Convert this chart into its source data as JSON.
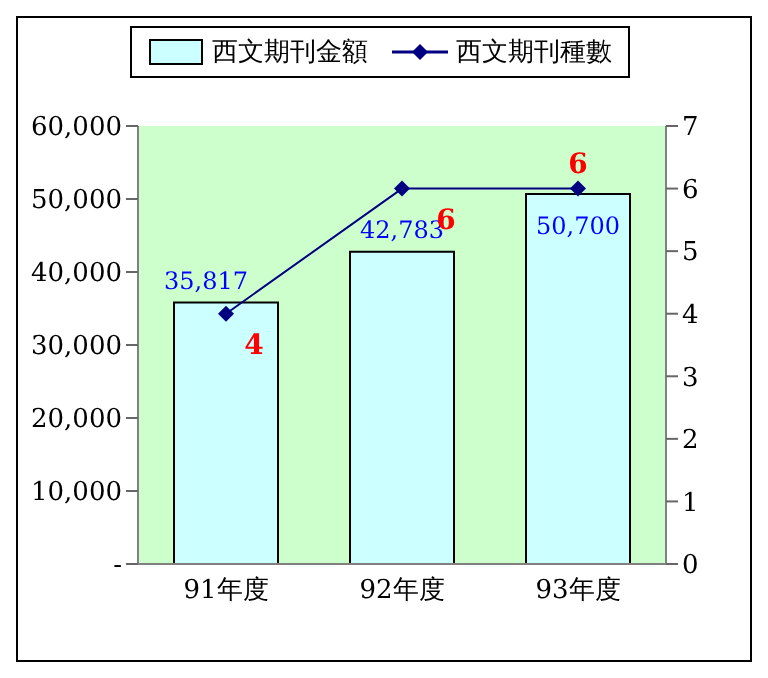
{
  "chart_data": {
    "type": "bar",
    "categories": [
      "91年度",
      "92年度",
      "93年度"
    ],
    "series": [
      {
        "name": "西文期刊金額",
        "color": "#ccffff",
        "values": [
          35817,
          42783,
          50700
        ],
        "value_labels": [
          "35,817",
          "42,783",
          "50,700"
        ]
      },
      {
        "name": "西文期刊種數",
        "type": "line",
        "axis": "y2",
        "color": "#000080",
        "values": [
          4,
          6,
          6
        ],
        "value_labels": [
          "4",
          "6",
          "6"
        ]
      }
    ],
    "ylim": [
      0,
      60000
    ],
    "yticks": [
      {
        "value": 0,
        "label": "-"
      },
      {
        "value": 10000,
        "label": "10,000"
      },
      {
        "value": 20000,
        "label": "20,000"
      },
      {
        "value": 30000,
        "label": "30,000"
      },
      {
        "value": 40000,
        "label": "40,000"
      },
      {
        "value": 50000,
        "label": "50,000"
      },
      {
        "value": 60000,
        "label": "60,000"
      }
    ],
    "y2lim": [
      0,
      7
    ],
    "y2ticks": [
      0,
      1,
      2,
      3,
      4,
      5,
      6,
      7
    ],
    "legend": "top",
    "marker": "diamond",
    "line_style": "solid"
  }
}
